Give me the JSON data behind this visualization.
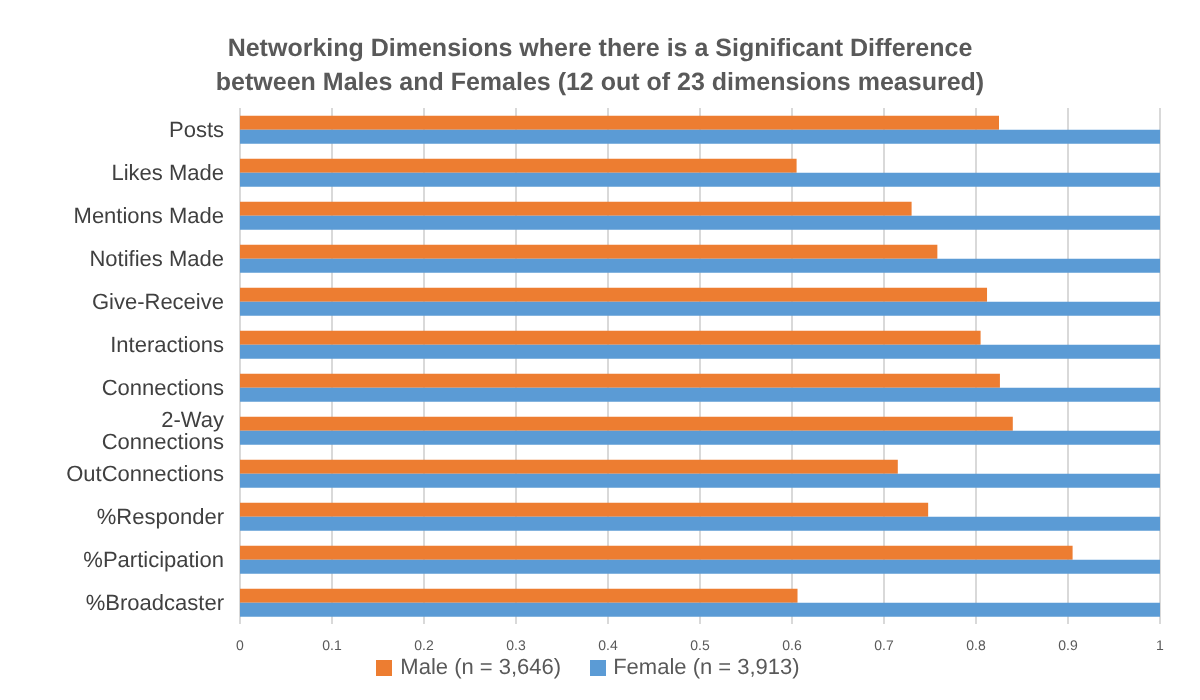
{
  "chart_data": {
    "type": "bar",
    "orientation": "horizontal",
    "title": "Networking Dimensions where there is a Significant Difference between Males and Females (12 out of 23 dimensions measured)",
    "categories": [
      "Posts",
      "Likes Made",
      "Mentions Made",
      "Notifies Made",
      "Give-Receive",
      "Interactions",
      "Connections",
      "2-Way Connections",
      "OutConnections",
      "%Responder",
      "%Participation",
      "%Broadcaster"
    ],
    "series": [
      {
        "name": "Male (n = 3,646)",
        "color": "#ed7d31",
        "values": [
          0.825,
          0.605,
          0.73,
          0.758,
          0.812,
          0.805,
          0.826,
          0.84,
          0.715,
          0.748,
          0.905,
          0.606
        ]
      },
      {
        "name": "Female (n = 3,913)",
        "color": "#5b9bd5",
        "values": [
          1,
          1,
          1,
          1,
          1,
          1,
          1,
          1,
          1,
          1,
          1,
          1
        ]
      }
    ],
    "xlim": [
      0,
      1
    ],
    "xticks": [
      0,
      0.1,
      0.2,
      0.3,
      0.4,
      0.5,
      0.6,
      0.7,
      0.8,
      0.9,
      1
    ],
    "grid": "x",
    "legend": "bottom"
  }
}
